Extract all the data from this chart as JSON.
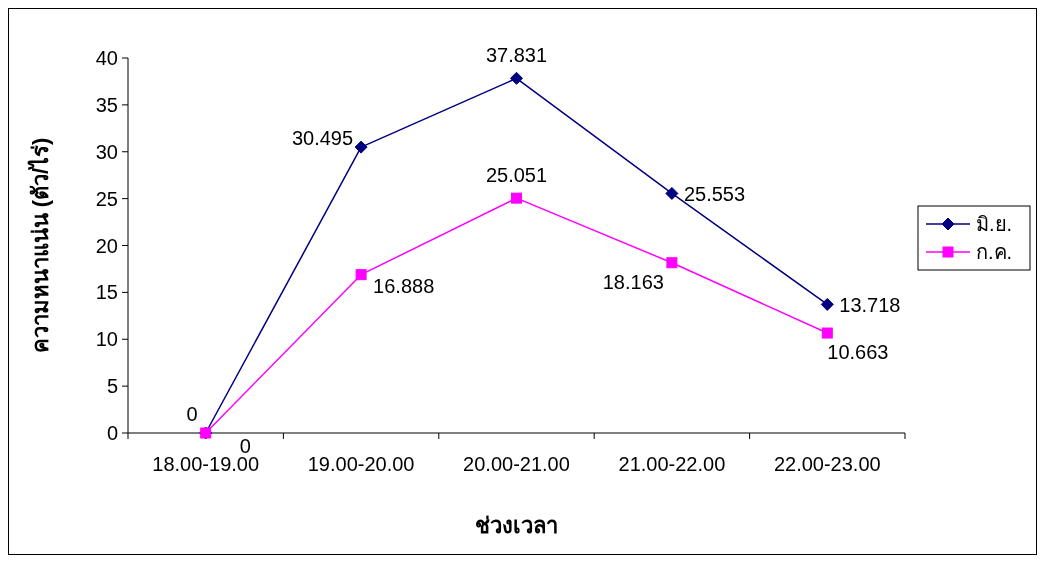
{
  "chart_data": {
    "type": "line",
    "xlabel": "ช่วงเวลา",
    "ylabel": "ความหนาแน่น (ตัว/ไร่)",
    "categories": [
      "18.00-19.00",
      "19.00-20.00",
      "20.00-21.00",
      "21.00-22.00",
      "22.00-23.00"
    ],
    "series": [
      {
        "name": "มิ.ย.",
        "color": "#000080",
        "marker": "diamond",
        "values": [
          0,
          30.495,
          37.831,
          25.553,
          13.718
        ]
      },
      {
        "name": "ก.ค.",
        "color": "#ff00ff",
        "marker": "square",
        "values": [
          0,
          16.888,
          25.051,
          18.163,
          10.663
        ]
      }
    ],
    "ylim": [
      0,
      40
    ],
    "yticks": [
      0,
      5,
      10,
      15,
      20,
      25,
      30,
      35,
      40
    ],
    "data_labels": true,
    "legend": "right",
    "grid": false
  }
}
